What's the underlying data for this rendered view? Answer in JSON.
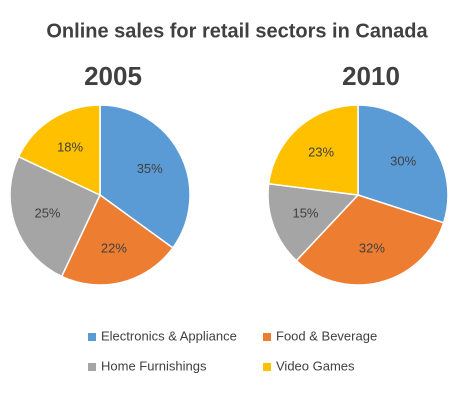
{
  "title": "Online sales for retail sectors in Canada",
  "chart_data": [
    {
      "type": "pie",
      "title": "2005",
      "categories": [
        "Electronics & Appliance",
        "Food & Beverage",
        "Home Furnishings",
        "Video Games"
      ],
      "values": [
        35,
        22,
        25,
        18
      ],
      "value_labels": [
        "35%",
        "22%",
        "25%",
        "18%"
      ],
      "colors": [
        "#5b9bd5",
        "#ed7d31",
        "#a5a5a5",
        "#ffc000"
      ]
    },
    {
      "type": "pie",
      "title": "2010",
      "categories": [
        "Electronics & Appliance",
        "Food & Beverage",
        "Home Furnishings",
        "Video Games"
      ],
      "values": [
        30,
        32,
        15,
        23
      ],
      "value_labels": [
        "30%",
        "32%",
        "15%",
        "23%"
      ],
      "colors": [
        "#5b9bd5",
        "#ed7d31",
        "#a5a5a5",
        "#ffc000"
      ]
    }
  ]
}
